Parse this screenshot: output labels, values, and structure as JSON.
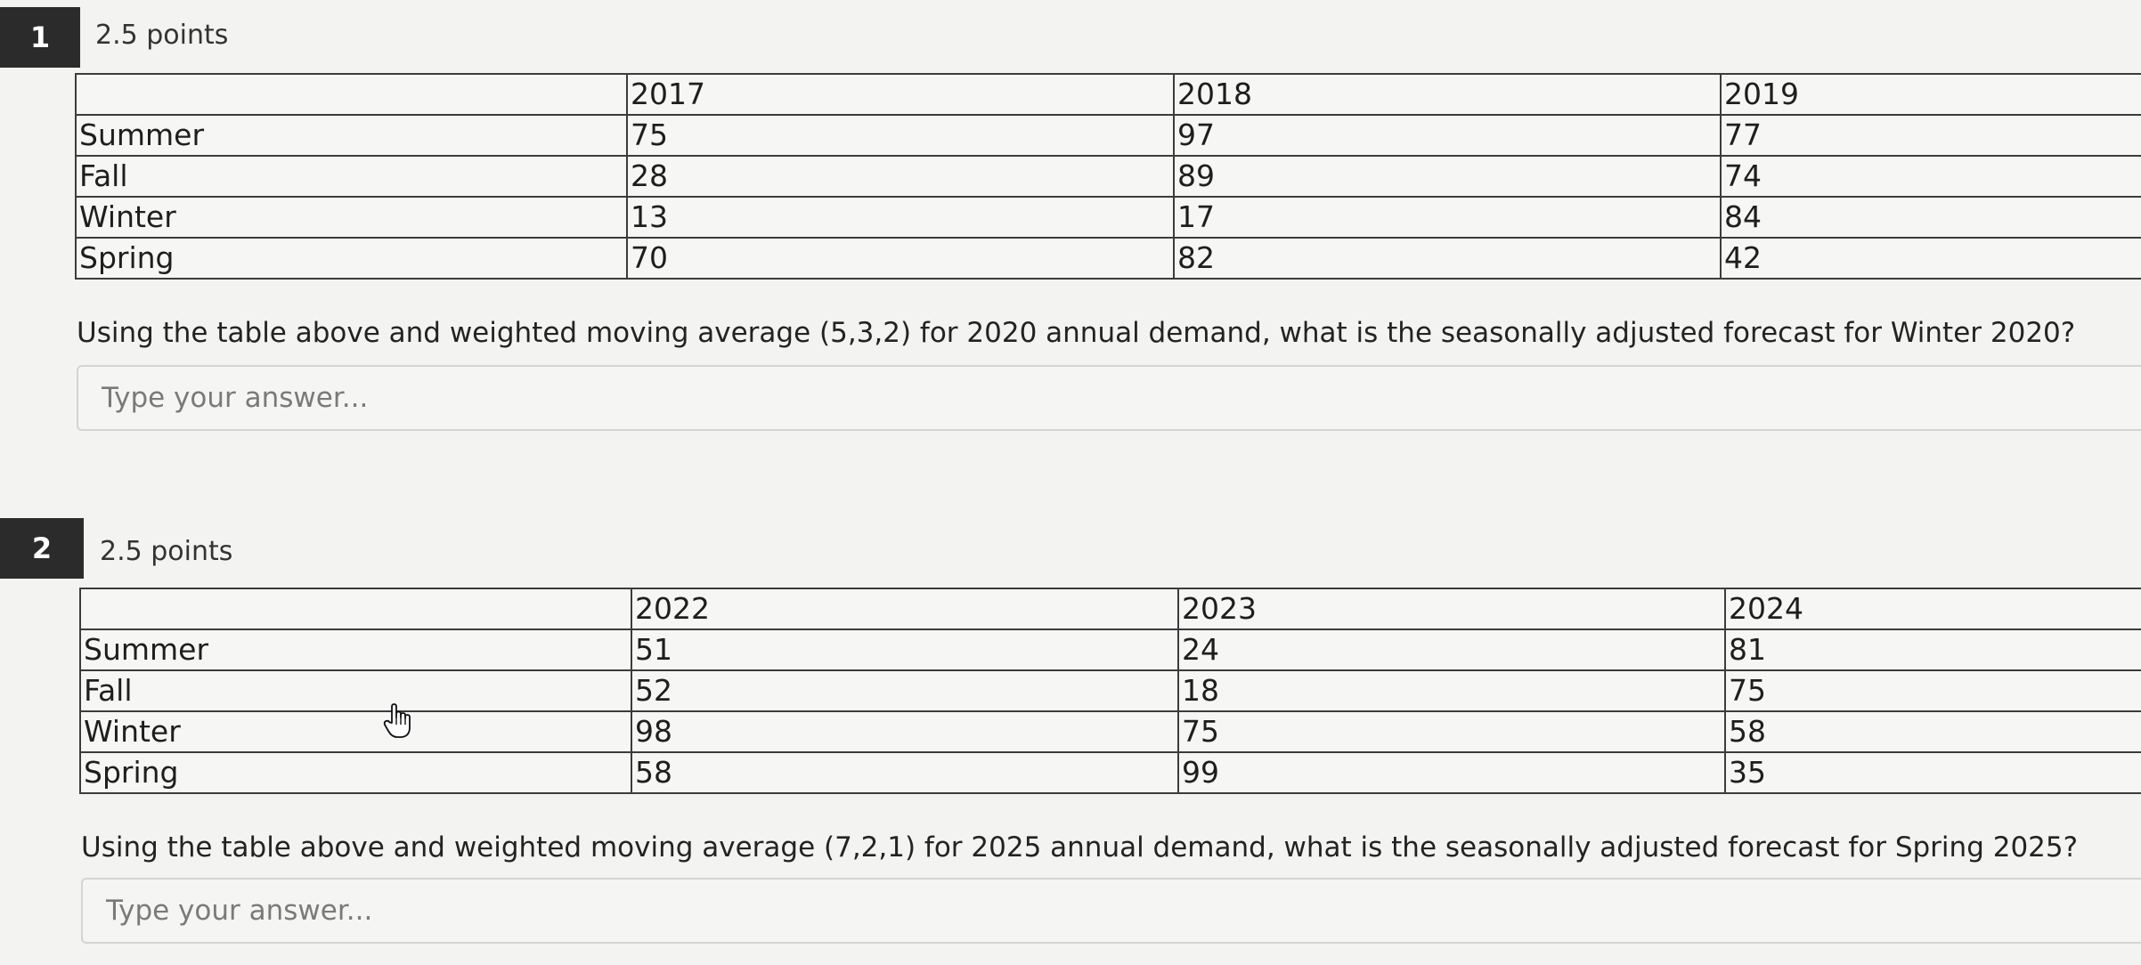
{
  "questions": [
    {
      "number": "1",
      "points": "2.5 points",
      "table": {
        "header": [
          "",
          "2017",
          "2018",
          "2019"
        ],
        "rows": [
          [
            "Summer",
            "75",
            "97",
            "77"
          ],
          [
            "Fall",
            "28",
            "89",
            "74"
          ],
          [
            "Winter",
            "13",
            "17",
            "84"
          ],
          [
            "Spring",
            "70",
            "82",
            "42"
          ]
        ]
      },
      "prompt": "Using the table above and weighted moving average (5,3,2) for 2020 annual demand, what is the seasonally adjusted forecast for Winter 2020?",
      "answer": {
        "value": "",
        "placeholder": "Type your answer..."
      }
    },
    {
      "number": "2",
      "points": "2.5 points",
      "table": {
        "header": [
          "",
          "2022",
          "2023",
          "2024"
        ],
        "rows": [
          [
            "Summer",
            "51",
            "24",
            "81"
          ],
          [
            "Fall",
            "52",
            "18",
            "75"
          ],
          [
            "Winter",
            "98",
            "75",
            "58"
          ],
          [
            "Spring",
            "58",
            "99",
            "35"
          ]
        ]
      },
      "prompt": "Using the table above and weighted moving average (7,2,1) for 2025 annual demand, what is the seasonally adjusted forecast for Spring 2025?",
      "answer": {
        "value": "",
        "placeholder": "Type your answer..."
      }
    }
  ],
  "icons": {
    "pointer": "hand-pointer-icon"
  }
}
